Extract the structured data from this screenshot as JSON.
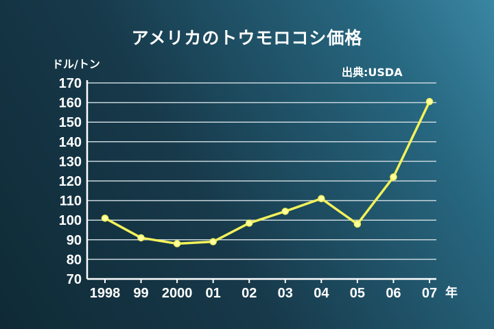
{
  "chart_data": {
    "type": "line",
    "title": "アメリカのトウモロコシ価格",
    "ylabel": "ドル/トン",
    "source": "出典:USDA",
    "x_unit": "年",
    "categories": [
      "1998",
      "99",
      "2000",
      "01",
      "02",
      "03",
      "04",
      "05",
      "06",
      "07"
    ],
    "series": [
      {
        "values": [
          101,
          91,
          88,
          89,
          98.5,
          104.5,
          111,
          98,
          122,
          160.5
        ]
      }
    ],
    "ylim": [
      70,
      170
    ],
    "yticks": [
      70,
      80,
      90,
      100,
      110,
      120,
      130,
      140,
      150,
      160,
      170
    ],
    "grid": true,
    "line_color": "#f2f25a",
    "marker_color": "#ffffa0",
    "axis_color": "#ffffff",
    "grid_color": "#c9d6dc"
  }
}
